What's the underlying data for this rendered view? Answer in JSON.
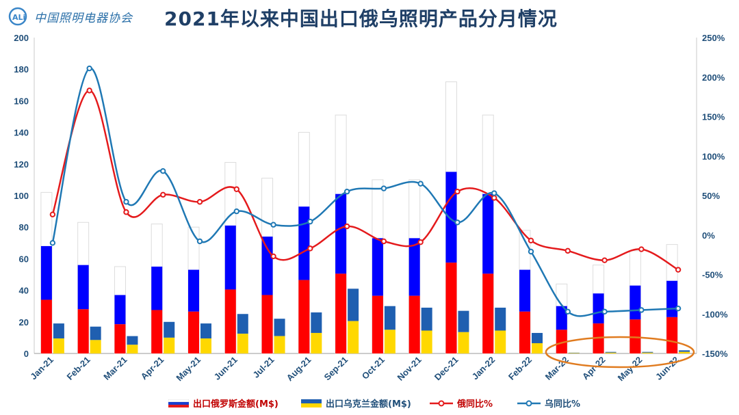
{
  "header": {
    "logo_text": "中国照明电器协会",
    "logo_mark": "CALI",
    "title": "2021年以来中国出口俄乌照明产品分月情况"
  },
  "colors": {
    "russia_bar_red": "#ff0000",
    "russia_bar_blue": "#0000ff",
    "ukraine_bar_blue": "#1f5fb0",
    "ukraine_bar_yellow": "#ffd800",
    "russia_line": "#e41a1c",
    "ukraine_line": "#1f78b4",
    "axis_text": "#1f4e79",
    "highlight_ellipse": "#e07b1f"
  },
  "chart_data": {
    "type": "bar",
    "categories": [
      "Jan-21",
      "Feb-21",
      "Mar-21",
      "Apr-21",
      "May-21",
      "Jun-21",
      "Jul-21",
      "Aug-21",
      "Sep-21",
      "Oct-21",
      "Nov-21",
      "Dec-21",
      "Jan-22",
      "Feb-22",
      "Mar-22",
      "Apr-22",
      "May-22",
      "Jun-22"
    ],
    "left_axis": {
      "ylim": [
        0,
        200
      ],
      "ticks": [
        0,
        20,
        40,
        60,
        80,
        100,
        120,
        140,
        160,
        180,
        200
      ]
    },
    "right_axis": {
      "ylim": [
        -150,
        250
      ],
      "ticks": [
        "-150%",
        "-100%",
        "-50%",
        "0%",
        "50%",
        "100%",
        "150%",
        "200%",
        "250%"
      ]
    },
    "series": [
      {
        "name": "出口俄罗斯金额(M$)",
        "kind": "bar",
        "axis": "left",
        "values": [
          68,
          56,
          37,
          55,
          53,
          81,
          74,
          93,
          101,
          73,
          73,
          115,
          101,
          53,
          30,
          38,
          43,
          46
        ]
      },
      {
        "name": "出口乌克兰金额(M$)",
        "kind": "bar",
        "axis": "left",
        "values": [
          19,
          17,
          11,
          20,
          19,
          25,
          22,
          26,
          41,
          30,
          29,
          27,
          29,
          13,
          0.5,
          1,
          1,
          2
        ]
      },
      {
        "name": "俄同比%",
        "kind": "line",
        "axis": "right",
        "values": [
          26,
          183,
          29,
          51,
          42,
          58,
          -27,
          -17,
          11,
          -8,
          -9,
          55,
          47,
          -7,
          -20,
          -32,
          -18,
          -44
        ]
      },
      {
        "name": "乌同比%",
        "kind": "line",
        "axis": "right",
        "values": [
          -10,
          211,
          42,
          81,
          -8,
          30,
          13,
          17,
          55,
          59,
          65,
          16,
          53,
          -21,
          -97,
          -97,
          -95,
          -93
        ]
      }
    ],
    "previous_year_ghost_bars": [
      102,
      83,
      55,
      82,
      80,
      121,
      111,
      140,
      151,
      110,
      110,
      172,
      151,
      78,
      44,
      56,
      65,
      69
    ],
    "legend_position": "bottom",
    "annotation": "orange ellipse around Mar-22 to Jun-22 Ukraine bars"
  }
}
